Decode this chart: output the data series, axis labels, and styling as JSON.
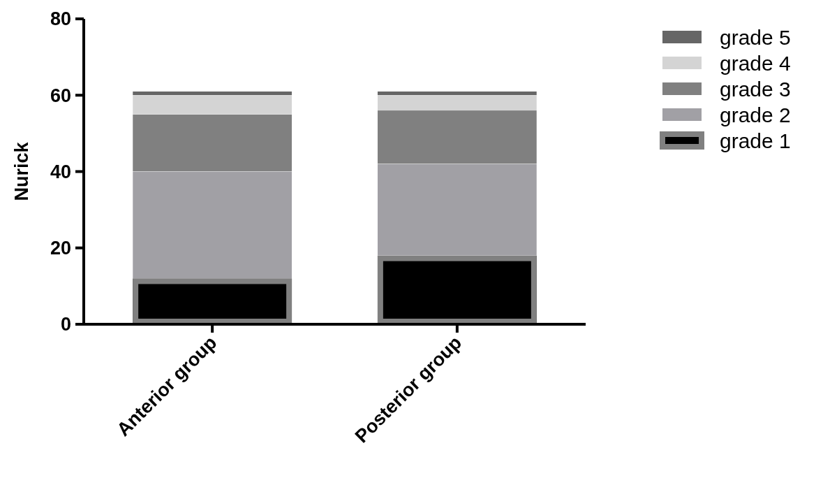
{
  "chart_data": {
    "type": "bar",
    "ylabel": "Nurick",
    "categories": [
      "Anterior group",
      "Posterior group"
    ],
    "stacked": true,
    "series": [
      {
        "name": "grade 1",
        "color": "#000000",
        "values": [
          12,
          18
        ]
      },
      {
        "name": "grade 2",
        "color": "#a1a0a5",
        "values": [
          28,
          24
        ]
      },
      {
        "name": "grade 3",
        "color": "#808080",
        "values": [
          15,
          14
        ]
      },
      {
        "name": "grade 4",
        "color": "#d4d4d4",
        "values": [
          5,
          4
        ]
      },
      {
        "name": "grade 5",
        "color": "#666666",
        "values": [
          1,
          1
        ]
      }
    ],
    "ylim": [
      0,
      80
    ],
    "yticks": [
      0,
      20,
      40,
      60,
      80
    ],
    "legend": "top right"
  }
}
